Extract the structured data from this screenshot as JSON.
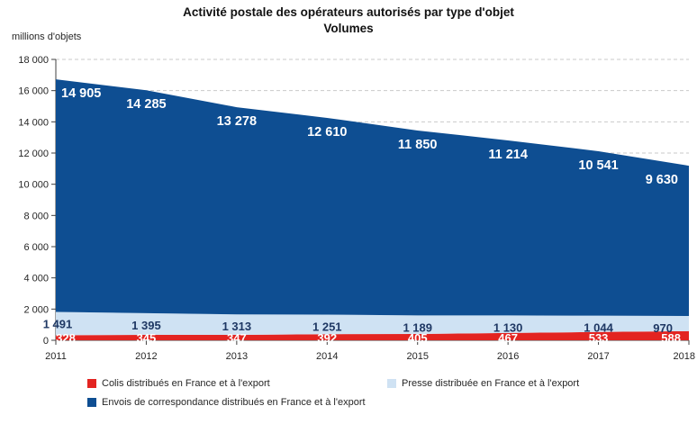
{
  "title": {
    "line1": "Activité postale des opérateurs autorisés par type d'objet",
    "line2": "Volumes"
  },
  "unit_label": "millions d'objets",
  "chart_data": {
    "type": "area",
    "stacked": true,
    "title": "Activité postale des opérateurs autorisés par type d'objet",
    "subtitle": "Volumes",
    "ylabel": "millions d'objets",
    "xlabel": "",
    "categories": [
      "2011",
      "2012",
      "2013",
      "2014",
      "2015",
      "2016",
      "2017",
      "2018"
    ],
    "series": [
      {
        "name": "Colis distribués en France et à l'export",
        "color": "#E32421",
        "label_color": "#FFFFFF",
        "values": [
          328,
          345,
          347,
          392,
          405,
          467,
          533,
          588
        ]
      },
      {
        "name": "Presse distribuée en France et à l'export",
        "color": "#CFE2F3",
        "label_color": "#1F3864",
        "values": [
          1491,
          1395,
          1313,
          1251,
          1189,
          1130,
          1044,
          970
        ]
      },
      {
        "name": "Envois de correspondance distribués en France et à l'export",
        "color": "#0E4E92",
        "label_color": "#FFFFFF",
        "values": [
          14905,
          14285,
          13278,
          12610,
          11850,
          11214,
          10541,
          9630
        ]
      }
    ],
    "ylim": [
      0,
      18000
    ],
    "ytick_step": 2000,
    "y_tick_labels": [
      "0",
      "2 000",
      "4 000",
      "6 000",
      "8 000",
      "10 000",
      "12 000",
      "14 000",
      "16 000",
      "18 000"
    ],
    "grid": "horizontal-dashed",
    "legend_position": "bottom"
  },
  "colors": {
    "grid": "#C9C9C9",
    "axis": "#404040",
    "tick_text": "#262626",
    "title_text": "#111111"
  }
}
